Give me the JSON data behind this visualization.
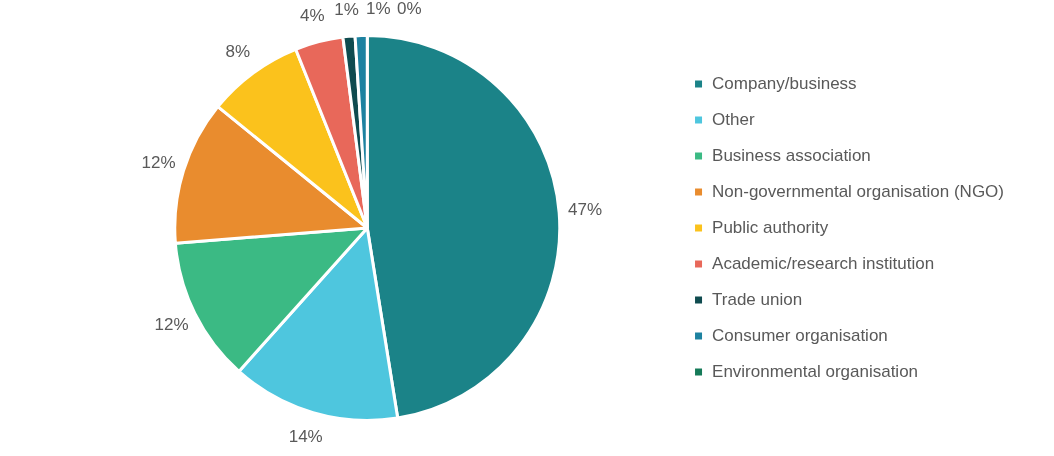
{
  "chart_data": {
    "type": "pie",
    "categories": [
      "Company/business",
      "Other",
      "Business association",
      "Non-governmental organisation (NGO)",
      "Public authority",
      "Academic/research institution",
      "Trade union",
      "Consumer organisation",
      "Environmental organisation"
    ],
    "values": [
      47,
      14,
      12,
      12,
      8,
      4,
      1,
      1,
      0
    ],
    "value_labels": [
      "47%",
      "14%",
      "12%",
      "12%",
      "8%",
      "4%",
      "1%",
      "1%",
      "0%"
    ],
    "colors": [
      "#1b8388",
      "#4ec6de",
      "#3bba84",
      "#e98c2e",
      "#fbc21c",
      "#e8685a",
      "#0f4b4f",
      "#1d82a0",
      "#157a58"
    ],
    "legend": "right"
  }
}
